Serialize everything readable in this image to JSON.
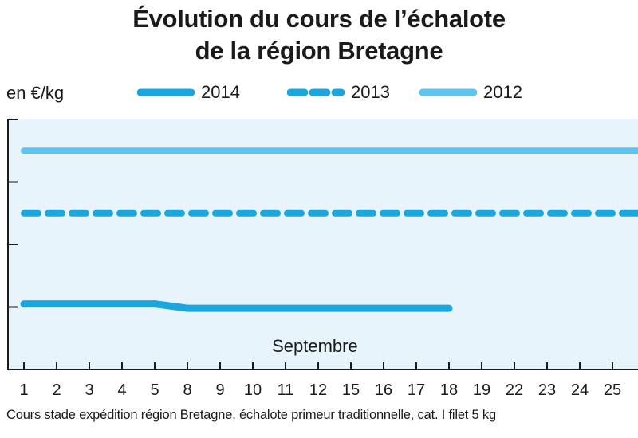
{
  "chart_data": {
    "type": "line",
    "title": "Évolution du cours de l’échalote",
    "subtitle": "de la région Bretagne",
    "ylabel": "en €/kg",
    "xlabel": "Septembre",
    "footer": "Cours stade expédition région Bretagne, échalote primeur traditionnelle, cat. I filet 5 kg",
    "categories": [
      "1",
      "2",
      "3",
      "4",
      "5",
      "8",
      "9",
      "10",
      "11",
      "12",
      "15",
      "16",
      "17",
      "18",
      "19",
      "22",
      "23",
      "24",
      "25",
      "2"
    ],
    "ylim": [
      0,
      4
    ],
    "grid": false,
    "legend_position": "top",
    "series": [
      {
        "name": "2014",
        "color": "#1aa6df",
        "style": "solid-thick",
        "values": [
          1.05,
          1.05,
          1.05,
          1.05,
          1.05,
          0.98,
          0.98,
          0.98,
          0.98,
          0.98,
          0.98,
          0.98,
          0.98,
          0.98,
          null,
          null,
          null,
          null,
          null,
          null
        ]
      },
      {
        "name": "2013",
        "color": "#1aa6df",
        "style": "dashed",
        "values": [
          2.5,
          2.5,
          2.5,
          2.5,
          2.5,
          2.5,
          2.5,
          2.5,
          2.5,
          2.5,
          2.5,
          2.5,
          2.5,
          2.5,
          2.5,
          2.5,
          2.5,
          2.5,
          2.5,
          2.5
        ]
      },
      {
        "name": "2012",
        "color": "#5ec3ee",
        "style": "solid",
        "values": [
          3.5,
          3.5,
          3.5,
          3.5,
          3.5,
          3.5,
          3.5,
          3.5,
          3.5,
          3.5,
          3.5,
          3.5,
          3.5,
          3.5,
          3.5,
          3.5,
          3.5,
          3.5,
          3.5,
          3.5
        ]
      }
    ]
  },
  "colors": {
    "plot_background": "#e8f4fb",
    "axis": "#1a1a1a"
  }
}
